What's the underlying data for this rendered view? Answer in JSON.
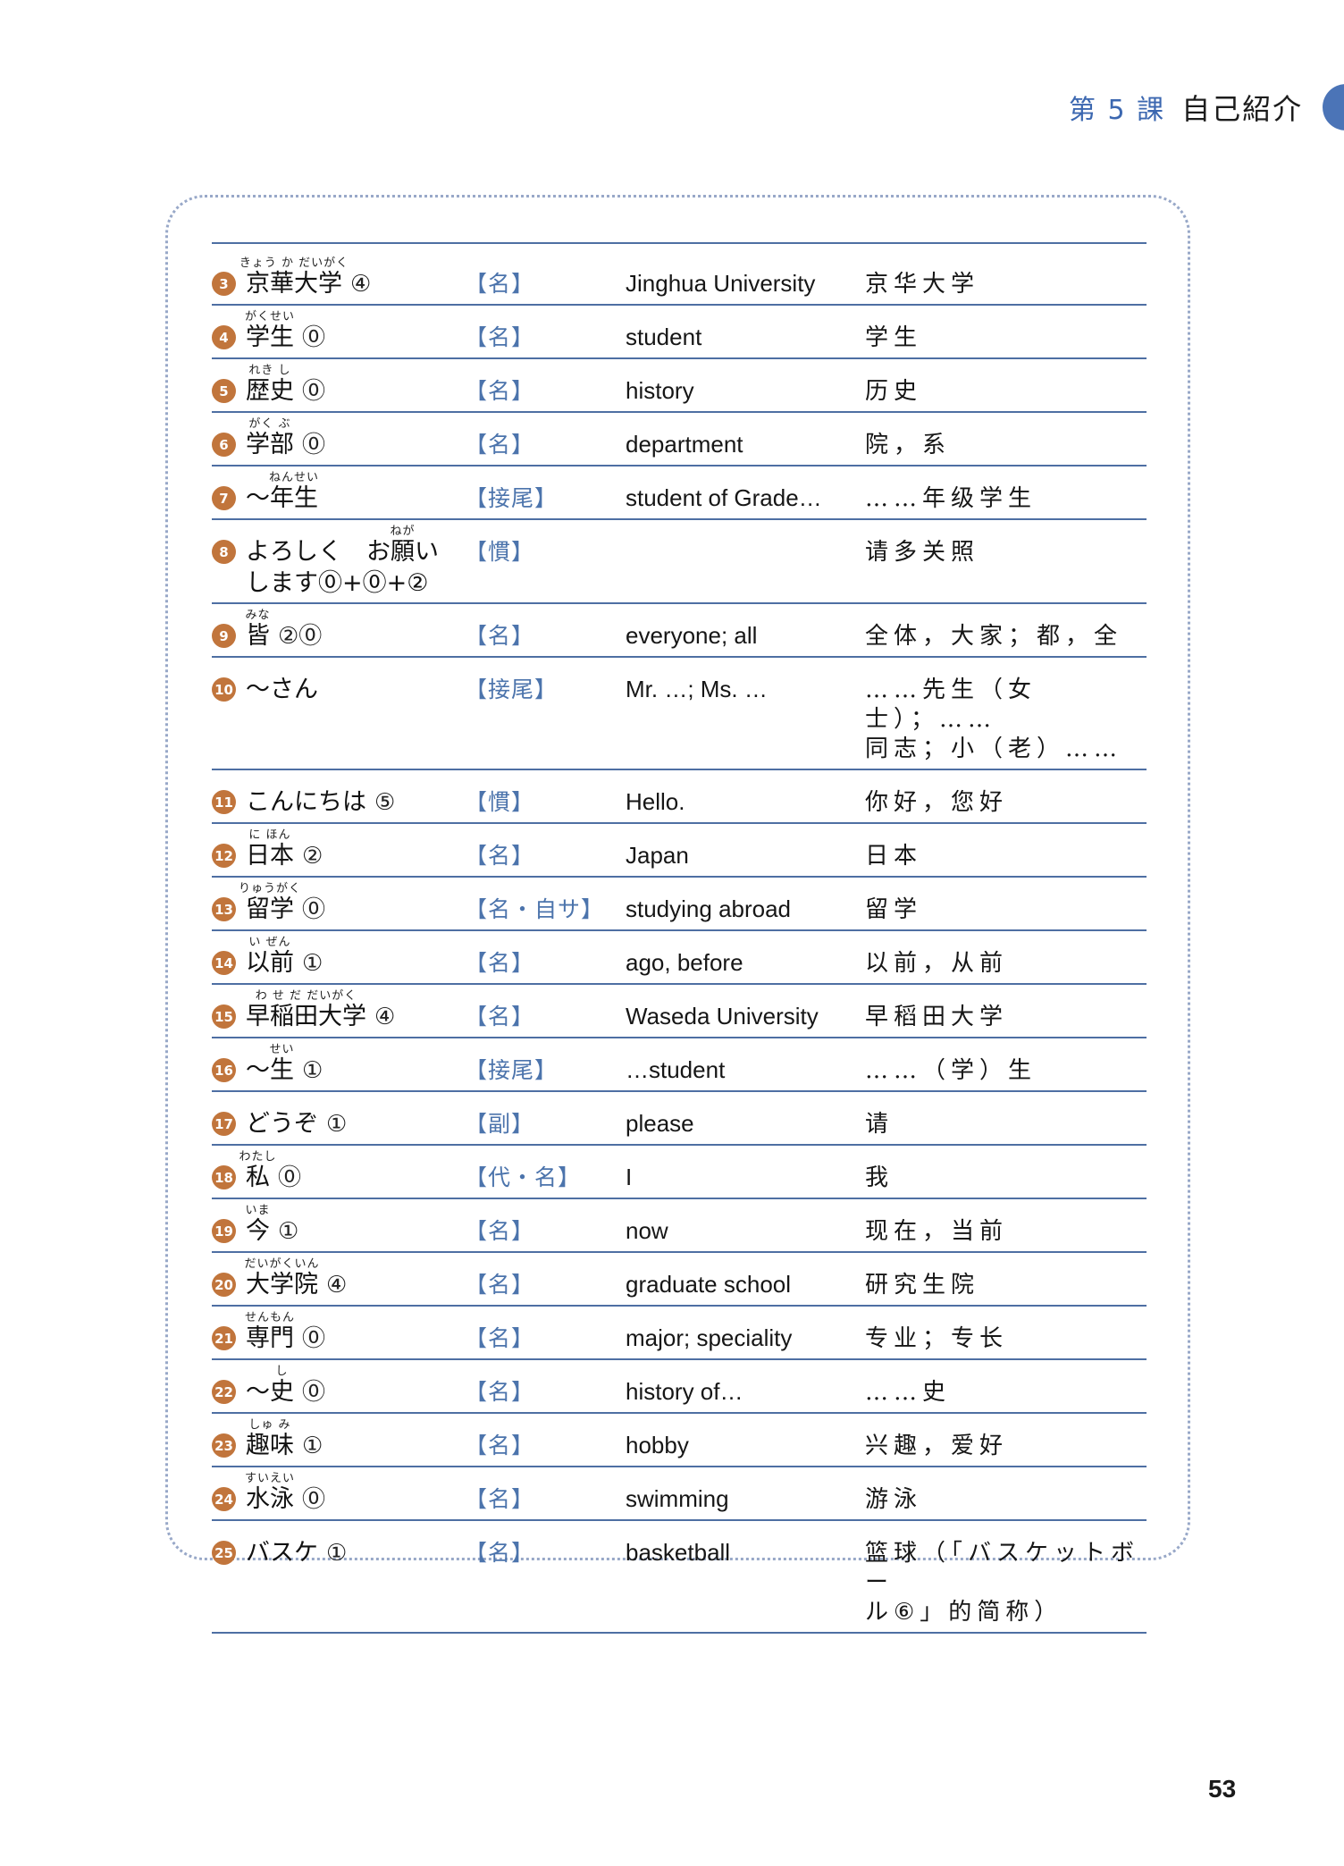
{
  "header": {
    "lesson": "第 5 課",
    "title": "自己紹介"
  },
  "footer": {
    "page_number": "53"
  },
  "colors": {
    "rule_blue": "#4e6fa3",
    "pos_blue": "#4c74ac",
    "header_blue": "#3b67b0",
    "pill_blue": "#4b74b7",
    "badge_orange": "#c1753c",
    "dotted_border": "#98a8c8"
  },
  "vocab_table": {
    "rows": [
      {
        "num": "3",
        "word": [
          {
            "t": "京華大学",
            "r": "きょう か だいがく"
          }
        ],
        "acc": "④",
        "word2": null,
        "pos": "【名】",
        "en": "Jinghua University",
        "zh": "京华大学"
      },
      {
        "num": "4",
        "word": [
          {
            "t": "学生",
            "r": "がくせい"
          }
        ],
        "acc": "⓪",
        "word2": null,
        "pos": "【名】",
        "en": "student",
        "zh": "学生"
      },
      {
        "num": "5",
        "word": [
          {
            "t": "歴史",
            "r": "れき し"
          }
        ],
        "acc": "⓪",
        "word2": null,
        "pos": "【名】",
        "en": "history",
        "zh": "历史"
      },
      {
        "num": "6",
        "word": [
          {
            "t": "学部",
            "r": "がく ぶ"
          }
        ],
        "acc": "⓪",
        "word2": null,
        "pos": "【名】",
        "en": "department",
        "zh": "院，系"
      },
      {
        "num": "7",
        "word": [
          {
            "t": "〜"
          },
          {
            "t": "年生",
            "r": "ねんせい"
          }
        ],
        "acc": null,
        "word2": null,
        "pos": "【接尾】",
        "en": "student of Grade…",
        "zh": "……年级学生"
      },
      {
        "num": "8",
        "word": [
          {
            "t": "よろしく　お"
          },
          {
            "t": "願",
            "r": "ねが"
          },
          {
            "t": "い"
          }
        ],
        "acc": null,
        "word2": "します⓪+⓪+②",
        "pos": "【慣】",
        "en": "",
        "zh": "请多关照"
      },
      {
        "num": "9",
        "word": [
          {
            "t": "皆",
            "r": "みな"
          }
        ],
        "acc": "②⓪",
        "word2": null,
        "pos": "【名】",
        "en": "everyone; all",
        "zh": "全体，大家；都，全"
      },
      {
        "num": "10",
        "word": [
          {
            "t": "〜さん"
          }
        ],
        "acc": null,
        "word2": null,
        "pos": "【接尾】",
        "en": "Mr. …; Ms. …",
        "zh": "……先生（女士）；……\n同志；小（老）……"
      },
      {
        "num": "11",
        "word": [
          {
            "t": "こんにちは"
          }
        ],
        "acc": "⑤",
        "word2": null,
        "pos": "【慣】",
        "en": "Hello.",
        "zh": "你好，您好"
      },
      {
        "num": "12",
        "word": [
          {
            "t": "日本",
            "r": "に ほん"
          }
        ],
        "acc": "②",
        "word2": null,
        "pos": "【名】",
        "en": "Japan",
        "zh": "日本"
      },
      {
        "num": "13",
        "word": [
          {
            "t": "留学",
            "r": "りゅうがく"
          }
        ],
        "acc": "⓪",
        "word2": null,
        "pos": "【名・自サ】",
        "en": "studying abroad",
        "zh": "留学"
      },
      {
        "num": "14",
        "word": [
          {
            "t": "以前",
            "r": "い ぜん"
          }
        ],
        "acc": "①",
        "word2": null,
        "pos": "【名】",
        "en": "ago, before",
        "zh": "以前，从前"
      },
      {
        "num": "15",
        "word": [
          {
            "t": "早稲田大学",
            "r": "わ せ だ だいがく"
          }
        ],
        "acc": "④",
        "word2": null,
        "pos": "【名】",
        "en": "Waseda University",
        "zh": "早稻田大学"
      },
      {
        "num": "16",
        "word": [
          {
            "t": "〜"
          },
          {
            "t": "生",
            "r": "せい"
          }
        ],
        "acc": "①",
        "word2": null,
        "pos": "【接尾】",
        "en": "…student",
        "zh": "……（学）生"
      },
      {
        "num": "17",
        "word": [
          {
            "t": "どうぞ"
          }
        ],
        "acc": "①",
        "word2": null,
        "pos": "【副】",
        "en": "please",
        "zh": "请"
      },
      {
        "num": "18",
        "word": [
          {
            "t": "私",
            "r": "わたし"
          }
        ],
        "acc": "⓪",
        "word2": null,
        "pos": "【代・名】",
        "en": "I",
        "zh": "我"
      },
      {
        "num": "19",
        "word": [
          {
            "t": "今",
            "r": "いま"
          }
        ],
        "acc": "①",
        "word2": null,
        "pos": "【名】",
        "en": "now",
        "zh": "现在，当前"
      },
      {
        "num": "20",
        "word": [
          {
            "t": "大学院",
            "r": "だいがくいん"
          }
        ],
        "acc": "④",
        "word2": null,
        "pos": "【名】",
        "en": "graduate school",
        "zh": "研究生院"
      },
      {
        "num": "21",
        "word": [
          {
            "t": "専門",
            "r": "せんもん"
          }
        ],
        "acc": "⓪",
        "word2": null,
        "pos": "【名】",
        "en": "major; speciality",
        "zh": "专业；专长"
      },
      {
        "num": "22",
        "word": [
          {
            "t": "〜"
          },
          {
            "t": "史",
            "r": "し"
          }
        ],
        "acc": "⓪",
        "word2": null,
        "pos": "【名】",
        "en": "history of…",
        "zh": "……史"
      },
      {
        "num": "23",
        "word": [
          {
            "t": "趣味",
            "r": "しゅ み"
          }
        ],
        "acc": "①",
        "word2": null,
        "pos": "【名】",
        "en": "hobby",
        "zh": "兴趣，爱好"
      },
      {
        "num": "24",
        "word": [
          {
            "t": "水泳",
            "r": "すいえい"
          }
        ],
        "acc": "⓪",
        "word2": null,
        "pos": "【名】",
        "en": "swimming",
        "zh": "游泳"
      },
      {
        "num": "25",
        "word": [
          {
            "t": "バスケ"
          }
        ],
        "acc": "①",
        "word2": null,
        "pos": "【名】",
        "en": "basketball",
        "zh": "篮球（「バスケットボー\nル⑥」的简称）"
      }
    ]
  }
}
